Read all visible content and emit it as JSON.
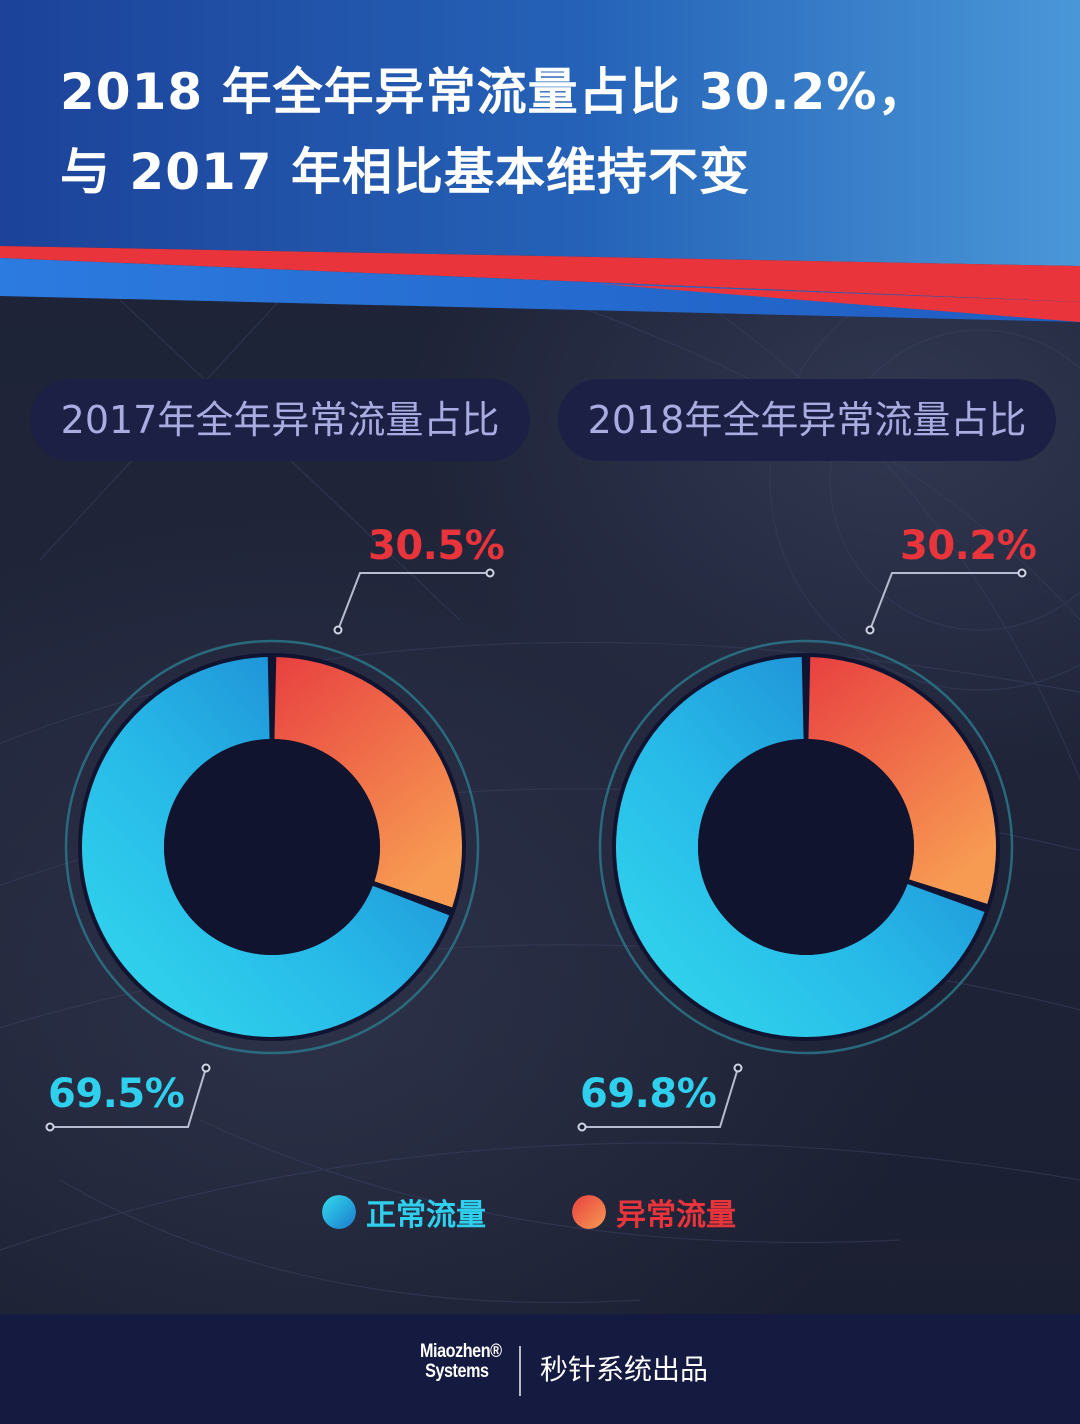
{
  "headline": {
    "line1": "2018 年全年异常流量占比 30.2%，",
    "line2": "与 2017 年相比基本维持不变"
  },
  "colors": {
    "header_blue": "#1e4fa8",
    "stripe_red": "#e8343a",
    "normal_cyan": "#2fd0ee",
    "abnormal_red": "#e8343a",
    "footer_navy": "#151a40"
  },
  "chart_data": [
    {
      "type": "pie",
      "title": "2017年全年异常流量占比",
      "categories": [
        "异常流量",
        "正常流量"
      ],
      "values": [
        30.5,
        69.5
      ],
      "labels": [
        "30.5%",
        "69.5%"
      ]
    },
    {
      "type": "pie",
      "title": "2018年全年异常流量占比",
      "categories": [
        "异常流量",
        "正常流量"
      ],
      "values": [
        30.2,
        69.8
      ],
      "labels": [
        "30.2%",
        "69.8%"
      ]
    }
  ],
  "legend": {
    "normal": "正常流量",
    "abnormal": "异常流量",
    "normal_icon": "cyan-circle",
    "abnormal_icon": "orange-circle"
  },
  "footer": {
    "logo_line1": "Miaozhen®",
    "logo_line2": "Systems",
    "text": "秒针系统出品"
  }
}
